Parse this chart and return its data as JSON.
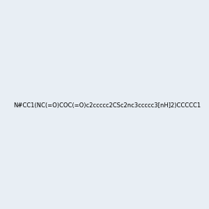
{
  "smiles": "N#CC1(NC(=O)COC(=O)c2ccccc2CSc2nc3ccccc3[nH]2)CCCCC1",
  "image_size": 300,
  "background_color": "#e8eef4",
  "title": ""
}
